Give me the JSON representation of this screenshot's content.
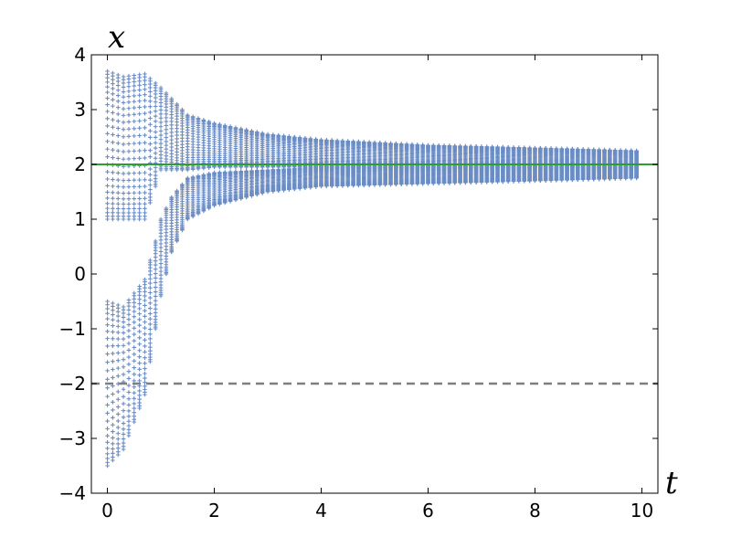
{
  "chart_data": {
    "type": "scatter",
    "title": "",
    "xlabel": "t",
    "ylabel": "x",
    "xlim": [
      -0.3,
      10.3
    ],
    "ylim": [
      -4,
      4
    ],
    "xticks": [
      0,
      2,
      4,
      6,
      8,
      10
    ],
    "yticks": [
      -4,
      -3,
      -2,
      -1,
      0,
      1,
      2,
      3,
      4
    ],
    "xtick_labels": [
      "0",
      "2",
      "4",
      "6",
      "8",
      "10"
    ],
    "ytick_labels": [
      "−4",
      "−3",
      "−2",
      "−1",
      "0",
      "1",
      "2",
      "3",
      "4"
    ],
    "grid": false,
    "legend": "none",
    "reference_lines": [
      {
        "y": 2,
        "style": "solid",
        "color": "#2ca02c"
      },
      {
        "y": -2,
        "style": "dashed",
        "color": "#7f7f7f"
      }
    ],
    "series": [
      {
        "color": "#6b8cc4",
        "marker": "+",
        "t_step": 0.1,
        "t_range": [
          0,
          9.9
        ],
        "upper_band_envelope": [
          {
            "t": 0.0,
            "low": 1.0,
            "high": 3.7
          },
          {
            "t": 0.3,
            "low": 1.0,
            "high": 3.6
          },
          {
            "t": 0.7,
            "low": 1.0,
            "high": 3.65
          },
          {
            "t": 1.0,
            "low": 1.9,
            "high": 3.4
          },
          {
            "t": 1.5,
            "low": 1.9,
            "high": 2.9
          },
          {
            "t": 2.0,
            "low": 1.95,
            "high": 2.75
          },
          {
            "t": 3.0,
            "low": 1.95,
            "high": 2.55
          },
          {
            "t": 4.0,
            "low": 1.95,
            "high": 2.45
          },
          {
            "t": 6.0,
            "low": 1.95,
            "high": 2.35
          },
          {
            "t": 8.0,
            "low": 1.95,
            "high": 2.3
          },
          {
            "t": 9.9,
            "low": 1.95,
            "high": 2.25
          }
        ],
        "lower_band_envelope": [
          {
            "t": 0.0,
            "low": -3.5,
            "high": -0.5
          },
          {
            "t": 0.3,
            "low": -3.2,
            "high": -0.6
          },
          {
            "t": 0.7,
            "low": -2.2,
            "high": -0.1
          },
          {
            "t": 0.9,
            "low": -1.0,
            "high": 0.6
          },
          {
            "t": 1.0,
            "low": -0.4,
            "high": 1.0
          },
          {
            "t": 1.2,
            "low": 0.4,
            "high": 1.4
          },
          {
            "t": 1.5,
            "low": 1.0,
            "high": 1.75
          },
          {
            "t": 2.0,
            "low": 1.25,
            "high": 1.85
          },
          {
            "t": 3.0,
            "low": 1.5,
            "high": 1.9
          },
          {
            "t": 4.0,
            "low": 1.6,
            "high": 1.95
          },
          {
            "t": 6.0,
            "low": 1.65,
            "high": 1.95
          },
          {
            "t": 8.0,
            "low": 1.7,
            "high": 1.95
          },
          {
            "t": 9.9,
            "low": 1.75,
            "high": 1.95
          }
        ]
      }
    ]
  }
}
